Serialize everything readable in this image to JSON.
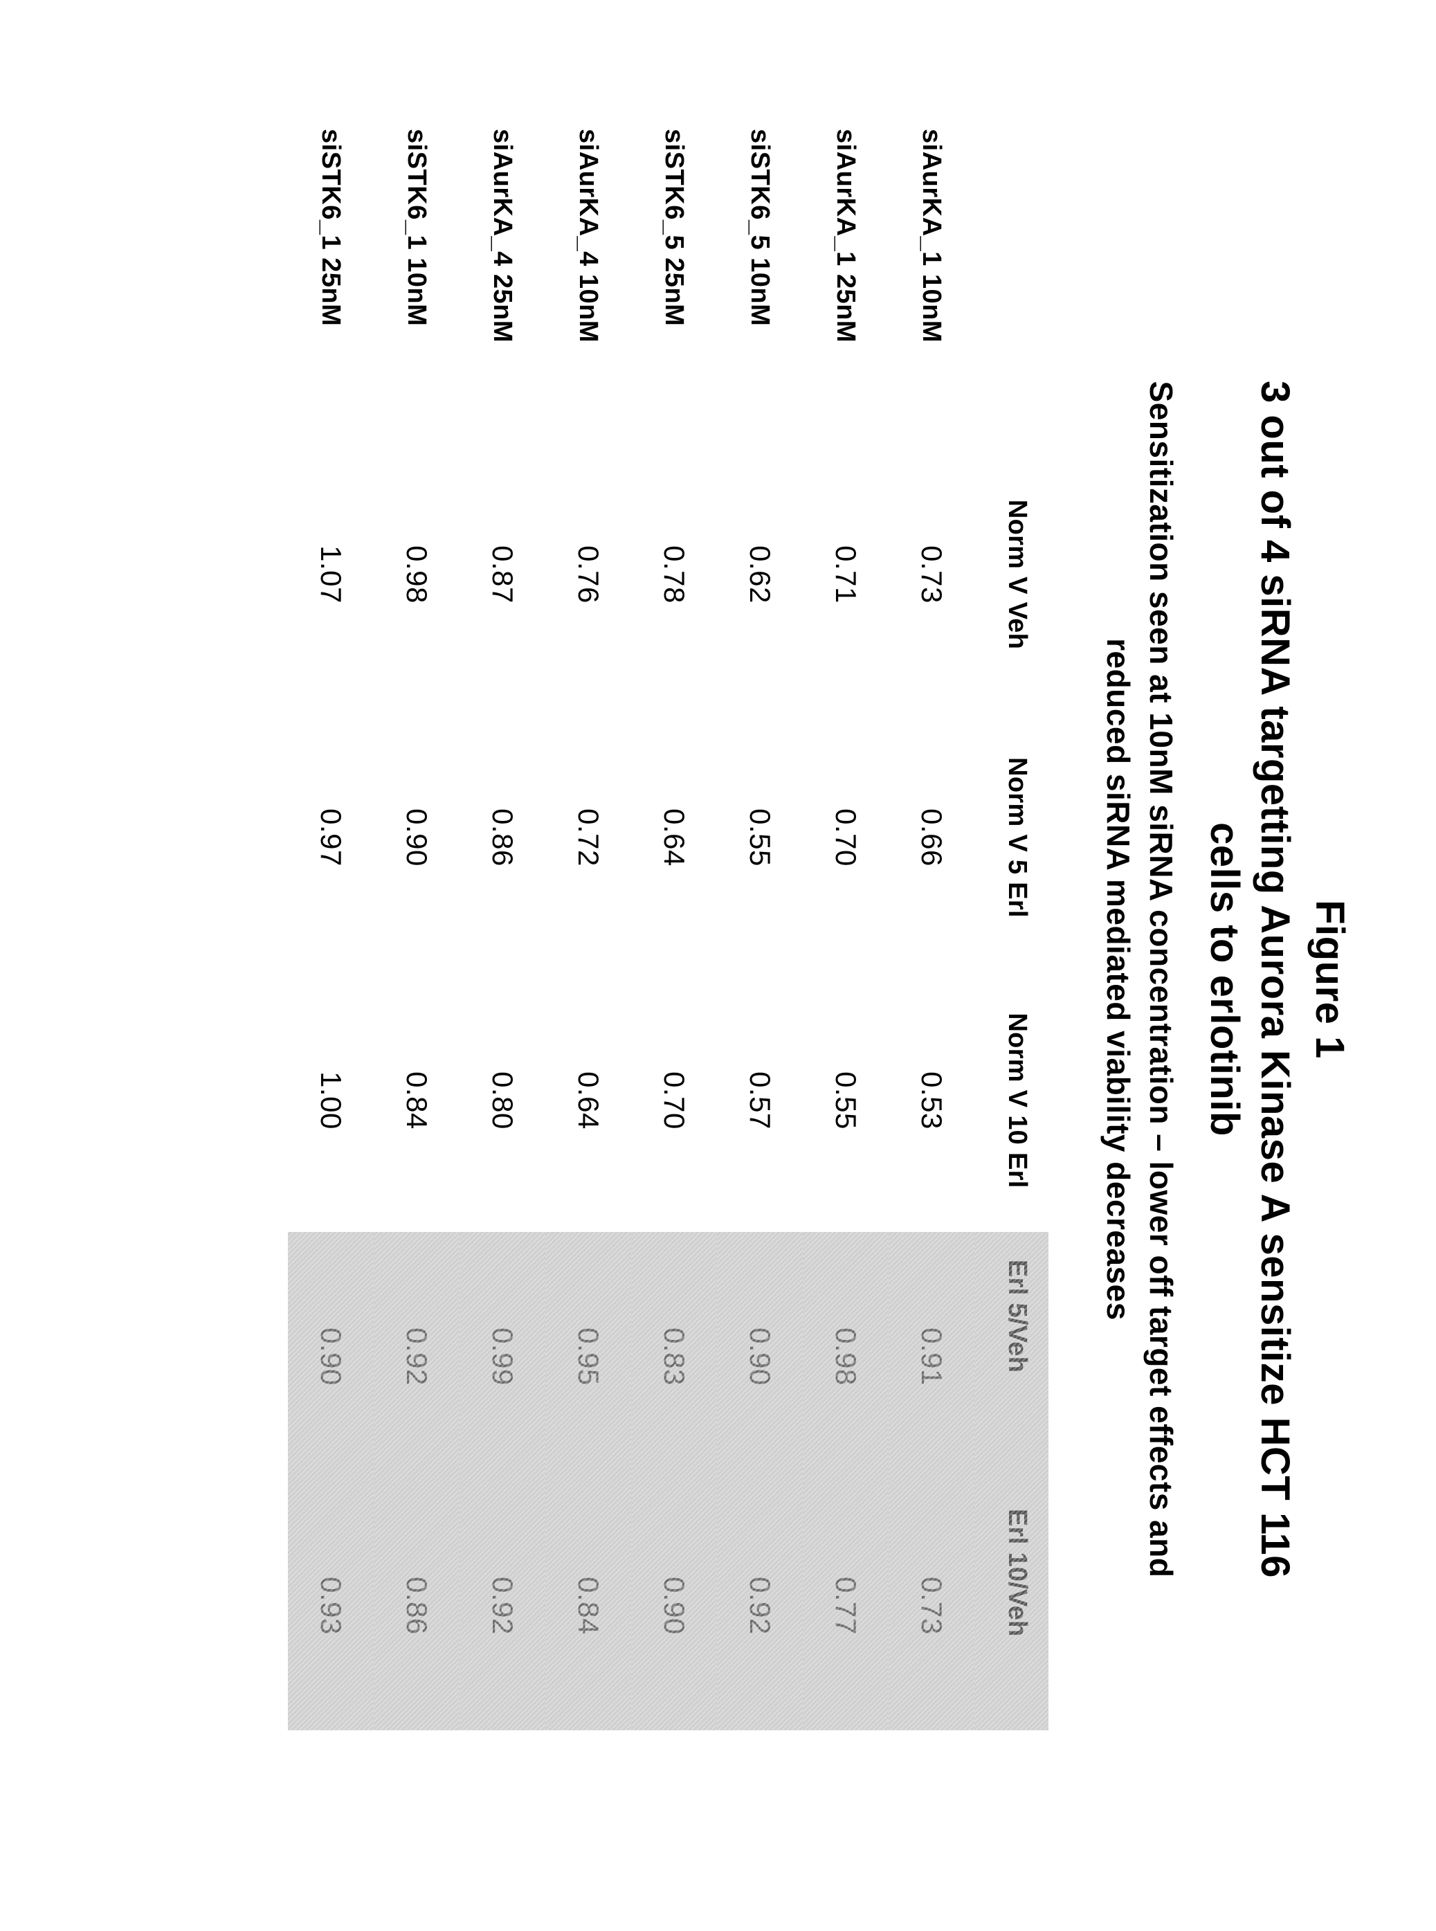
{
  "figure_label": "Figure 1",
  "title": "3 out of 4 siRNA targetting Aurora Kinase A sensitize HCT 116\ncells to erlotinib",
  "subtitle": "Sensitization seen at 10nM siRNA concentration – lower off target effects and\nreduced siRNA mediated viability decreases",
  "table": {
    "columns": [
      "",
      "Norm V Veh",
      "Norm V 5 Erl",
      "Norm V 10 Erl",
      "Erl 5/Veh",
      "Erl 10/Veh"
    ],
    "shaded_column_indices": [
      4,
      5
    ],
    "rows": [
      {
        "label": "siAurKA_1 10nM",
        "values": [
          "0.73",
          "0.66",
          "0.53",
          "0.91",
          "0.73"
        ]
      },
      {
        "label": "siAurKA_1 25nM",
        "values": [
          "0.71",
          "0.70",
          "0.55",
          "0.98",
          "0.77"
        ]
      },
      {
        "label": "siSTK6_5 10nM",
        "values": [
          "0.62",
          "0.55",
          "0.57",
          "0.90",
          "0.92"
        ]
      },
      {
        "label": "siSTK6_5 25nM",
        "values": [
          "0.78",
          "0.64",
          "0.70",
          "0.83",
          "0.90"
        ]
      },
      {
        "label": "siAurKA_4 10nM",
        "values": [
          "0.76",
          "0.72",
          "0.64",
          "0.95",
          "0.84"
        ]
      },
      {
        "label": "siAurKA_4 25nM",
        "values": [
          "0.87",
          "0.86",
          "0.80",
          "0.99",
          "0.92"
        ]
      },
      {
        "label": "siSTK6_1 10nM",
        "values": [
          "0.98",
          "0.90",
          "0.84",
          "0.92",
          "0.86"
        ]
      },
      {
        "label": "siSTK6_1 25nM",
        "values": [
          "1.07",
          "0.97",
          "1.00",
          "0.90",
          "0.93"
        ]
      }
    ]
  },
  "styling": {
    "page_bg": "#ffffff",
    "text_color": "#000000",
    "shaded_bg": "#cfcfcf",
    "shaded_text": "#6a6a6a",
    "title_fontsize": 58,
    "subtitle_fontsize": 46,
    "header_fontsize": 38,
    "cell_fontsize": 42,
    "rowlabel_fontsize": 38,
    "rotation_deg": 90
  }
}
